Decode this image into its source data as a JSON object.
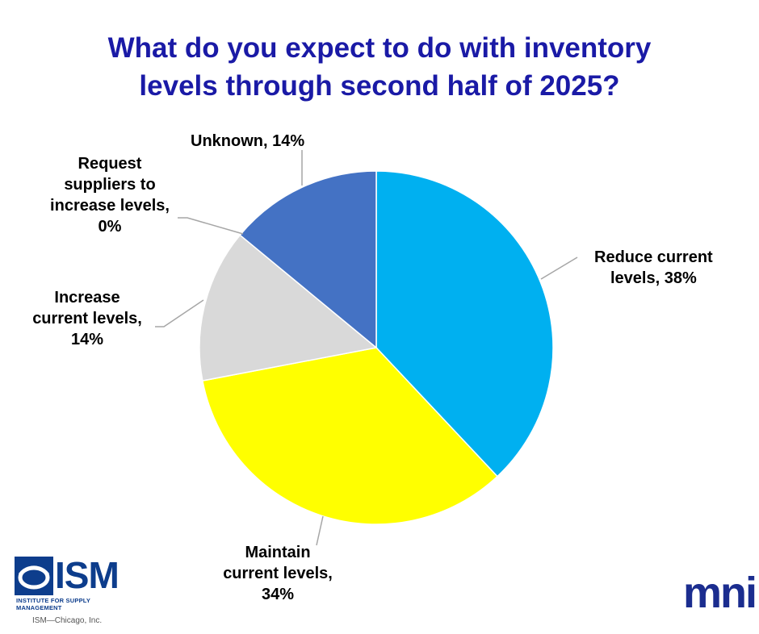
{
  "chart_data": {
    "type": "pie",
    "title_lines": [
      "What do you expect to do with inventory",
      "levels through second half of 2025?"
    ],
    "slices": [
      {
        "name": "Reduce current levels",
        "value": 38,
        "color": "#00b0f0",
        "label_lines": [
          "Reduce current",
          "levels, 38%"
        ]
      },
      {
        "name": "Maintain current levels",
        "value": 34,
        "color": "#ffff00",
        "label_lines": [
          "Maintain",
          "current levels,",
          "34%"
        ]
      },
      {
        "name": "Increase current levels",
        "value": 14,
        "color": "#d9d9d9",
        "label_lines": [
          "Increase",
          "current levels,",
          "14%"
        ]
      },
      {
        "name": "Request suppliers to increase levels",
        "value": 0,
        "color": "#a5a5a5",
        "label_lines": [
          "Request",
          "suppliers to",
          "increase levels,",
          "0%"
        ]
      },
      {
        "name": "Unknown",
        "value": 14,
        "color": "#4472c4",
        "label_lines": [
          "Unknown, 14%"
        ]
      }
    ],
    "start_angle": "12 o'clock",
    "direction": "clockwise",
    "legend": "none",
    "data_labels": "outside with leader lines"
  },
  "logos": {
    "ism_text": "ISM",
    "ism_sub": "INSTITUTE FOR SUPPLY MANAGEMENT",
    "ism_chicago": "ISM—Chicago, Inc.",
    "mni_text": "mni",
    "ism_color": "#0d3d8c",
    "mni_color": "#1b2d8f"
  }
}
